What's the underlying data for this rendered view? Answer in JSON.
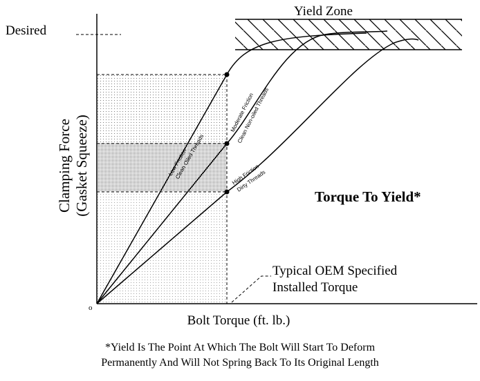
{
  "title": "Yield Zone",
  "desired_label": "Desired",
  "y_axis": {
    "label_line1": "Clamping Force",
    "label_line2": "(Gasket Squeeze)"
  },
  "x_axis": {
    "label": "Bolt Torque (ft. lb.)",
    "origin": "o"
  },
  "curves": [
    {
      "line1": "Low Friction",
      "line2": "Clean Oiled Threads"
    },
    {
      "line1": "Moderate Friction",
      "line2": "Clean Non-oiled Threads"
    },
    {
      "line1": "High Friction",
      "line2": "Dirty Threads"
    }
  ],
  "heading": "Torque To Yield*",
  "callout": {
    "line1": "Typical OEM Specified",
    "line2": "Installed Torque"
  },
  "footnote": {
    "line1": "*Yield Is The Point At Which The Bolt Will Start To Deform",
    "line2": "Permanently And Will Not Spring Back To Its Original Length"
  }
}
